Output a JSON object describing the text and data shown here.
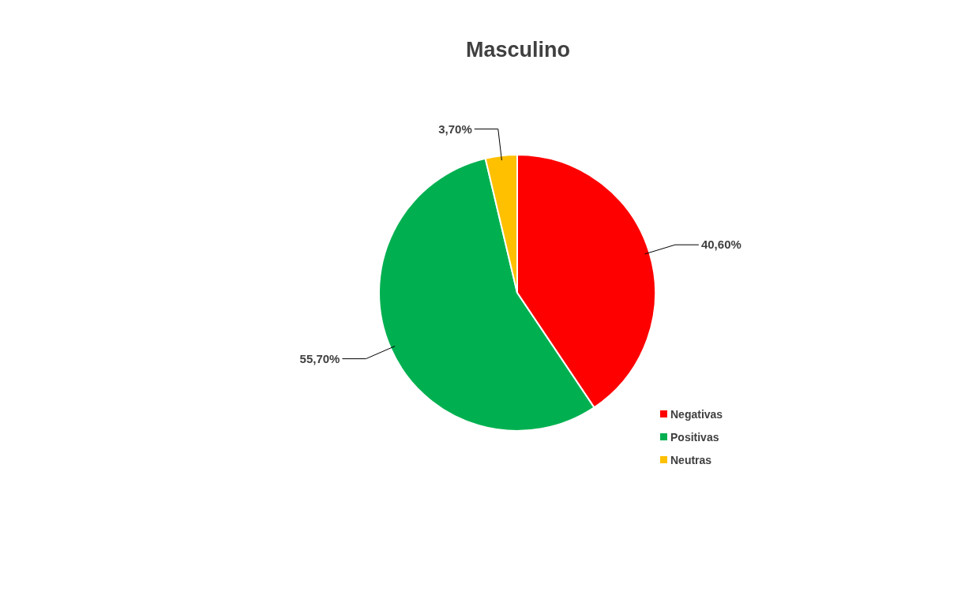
{
  "chart_data": {
    "type": "pie",
    "title": "Masculino",
    "categories": [
      "Negativas",
      "Positivas",
      "Neutras"
    ],
    "values": [
      40.6,
      55.7,
      3.7
    ],
    "value_labels": [
      "40,60%",
      "55,70%",
      "3,70%"
    ],
    "colors": [
      "#ff0000",
      "#00b050",
      "#ffc000"
    ],
    "legend": "bottom right"
  }
}
